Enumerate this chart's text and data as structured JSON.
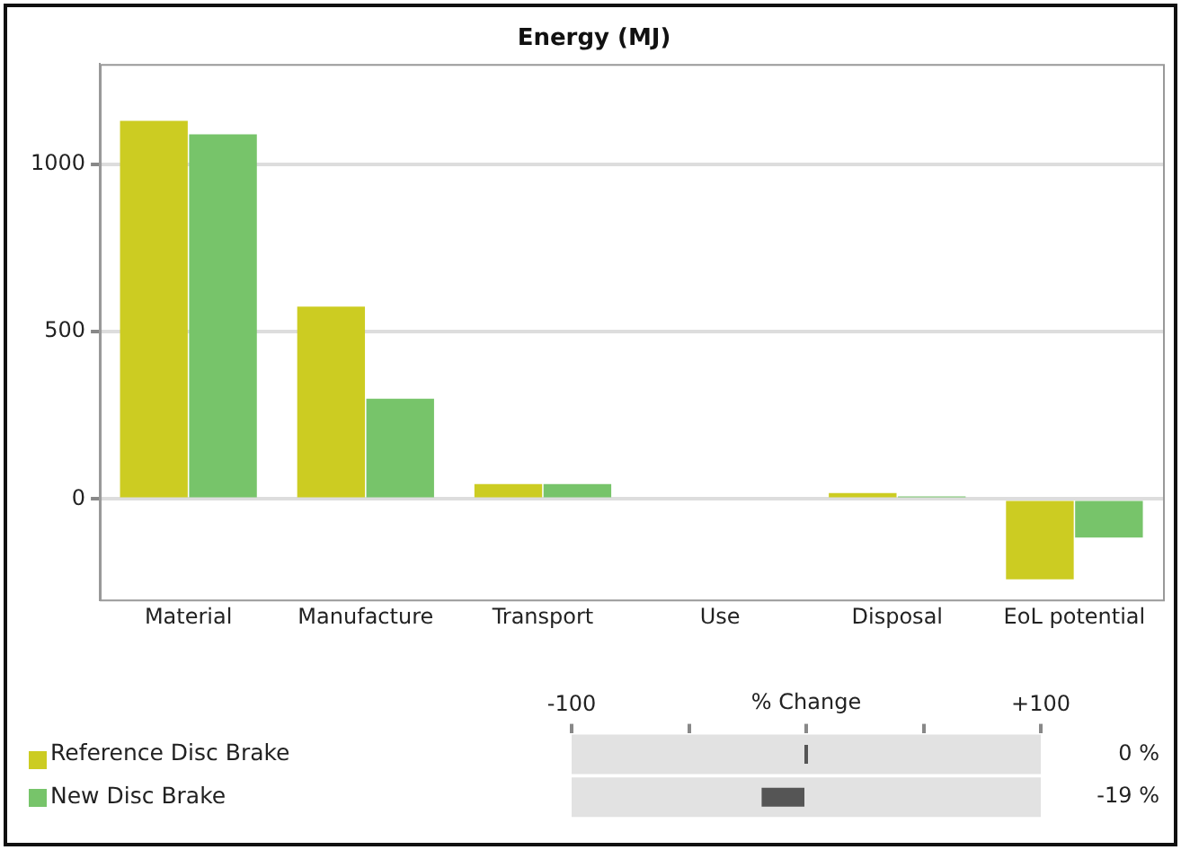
{
  "chart_data": [
    {
      "type": "bar",
      "title": "Energy (MJ)",
      "categories": [
        "Material",
        "Manufacture",
        "Transport",
        "Use",
        "Disposal",
        "EoL potential"
      ],
      "series": [
        {
          "color": "#cccc22",
          "values": [
            1130,
            575,
            45,
            0,
            18,
            -240
          ]
        },
        {
          "color": "#77c46a",
          "values": [
            1090,
            300,
            45,
            0,
            8,
            -115
          ]
        }
      ],
      "ylim": [
        -300,
        1300
      ],
      "yticks": [
        0,
        500,
        1000
      ],
      "grid": "y"
    },
    {
      "type": "bar",
      "orientation": "horizontal",
      "xlabel": "% Change",
      "categories": [
        "Reference Disc Brake",
        "New Disc Brake"
      ],
      "values": [
        0,
        -19
      ],
      "color": "#555555",
      "value_labels": [
        "0 %",
        "-19 %"
      ],
      "xlim": [
        -100,
        100
      ],
      "xticks": [
        {
          "value": -100,
          "label": "-100"
        },
        {
          "value": -50,
          "label": null
        },
        {
          "value": 0,
          "label": null
        },
        {
          "value": 50,
          "label": null
        },
        {
          "value": 100,
          "label": "+100"
        }
      ],
      "tick_labels": "x"
    }
  ]
}
